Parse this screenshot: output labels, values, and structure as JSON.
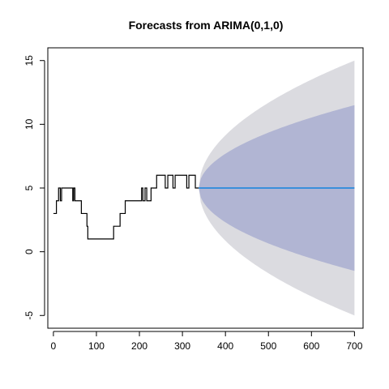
{
  "chart_data": {
    "type": "line",
    "title": "Forecasts from ARIMA(0,1,0)",
    "xlabel": "",
    "ylabel": "",
    "xlim": [
      -13,
      720
    ],
    "ylim": [
      -6,
      16
    ],
    "x_ticks": [
      0,
      100,
      200,
      300,
      400,
      500,
      600,
      700
    ],
    "y_ticks": [
      -5,
      0,
      5,
      10,
      15
    ],
    "grid": false,
    "legend": "none",
    "series": [
      {
        "role": "observed",
        "color": "#000000",
        "step": true,
        "points": [
          [
            0,
            3
          ],
          [
            7,
            3
          ],
          [
            7,
            4
          ],
          [
            12,
            4
          ],
          [
            12,
            5
          ],
          [
            16,
            5
          ],
          [
            16,
            4
          ],
          [
            19,
            4
          ],
          [
            19,
            5
          ],
          [
            45,
            5
          ],
          [
            45,
            4
          ],
          [
            47,
            4
          ],
          [
            47,
            5
          ],
          [
            50,
            5
          ],
          [
            50,
            4
          ],
          [
            65,
            4
          ],
          [
            65,
            3
          ],
          [
            78,
            3
          ],
          [
            78,
            2
          ],
          [
            80,
            2
          ],
          [
            80,
            1
          ],
          [
            140,
            1
          ],
          [
            140,
            2
          ],
          [
            155,
            2
          ],
          [
            155,
            3
          ],
          [
            167,
            3
          ],
          [
            167,
            4
          ],
          [
            205,
            4
          ],
          [
            205,
            5
          ],
          [
            208,
            5
          ],
          [
            208,
            4
          ],
          [
            213,
            4
          ],
          [
            213,
            5
          ],
          [
            217,
            5
          ],
          [
            217,
            4
          ],
          [
            227,
            4
          ],
          [
            227,
            5
          ],
          [
            240,
            5
          ],
          [
            240,
            6
          ],
          [
            260,
            6
          ],
          [
            260,
            5
          ],
          [
            266,
            5
          ],
          [
            266,
            6
          ],
          [
            278,
            6
          ],
          [
            278,
            5
          ],
          [
            283,
            5
          ],
          [
            283,
            6
          ],
          [
            310,
            6
          ],
          [
            310,
            5
          ],
          [
            315,
            5
          ],
          [
            315,
            6
          ],
          [
            330,
            6
          ],
          [
            330,
            5
          ],
          [
            338,
            5
          ]
        ]
      },
      {
        "role": "point forecast",
        "color": "#3A8FDB",
        "points": [
          [
            338,
            5
          ],
          [
            700,
            5
          ]
        ]
      }
    ],
    "forecast_bands": [
      {
        "level": "95%",
        "color": "#DBDBE0",
        "base_x": 338,
        "center": 5,
        "end_x": 700,
        "lower_end": -5,
        "upper_end": 15
      },
      {
        "level": "80%",
        "color": "#B1B5D3",
        "base_x": 338,
        "center": 5,
        "end_x": 700,
        "lower_end": -1.5,
        "upper_end": 11.5
      }
    ]
  }
}
